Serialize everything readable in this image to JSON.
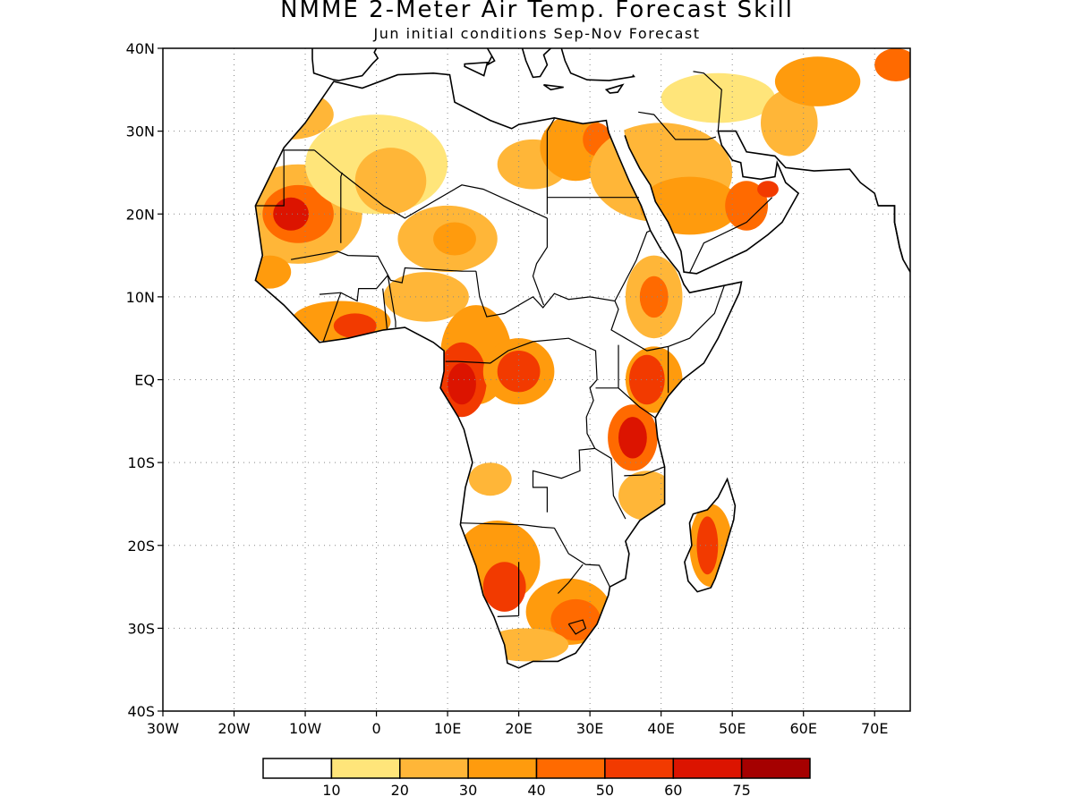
{
  "title": "NMME 2-Meter Air Temp. Forecast Skill",
  "subtitle": "Jun initial conditions  Sep-Nov Forecast",
  "map": {
    "lon_range": [
      -30,
      75
    ],
    "lat_range": [
      -40,
      40
    ],
    "grid": "dotted",
    "lat_ticks": [
      {
        "value": 40,
        "label": "40N"
      },
      {
        "value": 30,
        "label": "30N"
      },
      {
        "value": 20,
        "label": "20N"
      },
      {
        "value": 10,
        "label": "10N"
      },
      {
        "value": 0,
        "label": "EQ"
      },
      {
        "value": -10,
        "label": "10S"
      },
      {
        "value": -20,
        "label": "20S"
      },
      {
        "value": -30,
        "label": "30S"
      },
      {
        "value": -40,
        "label": "40S"
      }
    ],
    "lon_ticks": [
      {
        "value": -30,
        "label": "30W"
      },
      {
        "value": -20,
        "label": "20W"
      },
      {
        "value": -10,
        "label": "10W"
      },
      {
        "value": 0,
        "label": "0"
      },
      {
        "value": 10,
        "label": "10E"
      },
      {
        "value": 20,
        "label": "20E"
      },
      {
        "value": 30,
        "label": "30E"
      },
      {
        "value": 40,
        "label": "40E"
      },
      {
        "value": 50,
        "label": "50E"
      },
      {
        "value": 60,
        "label": "60E"
      },
      {
        "value": 70,
        "label": "70E"
      }
    ]
  },
  "colorbar": {
    "colors": [
      "#ffffff",
      "#ffe57a",
      "#ffb638",
      "#ff9b0d",
      "#ff6a00",
      "#f23a00",
      "#dc1400",
      "#a50000"
    ],
    "labels": [
      "10",
      "20",
      "30",
      "40",
      "50",
      "60",
      "75"
    ]
  },
  "skill_regions": [
    {
      "lon": -11,
      "lat": 20,
      "rx": 9,
      "ry": 6,
      "level": 2
    },
    {
      "lon": -11,
      "lat": 20,
      "rx": 5,
      "ry": 3.5,
      "level": 4
    },
    {
      "lon": -12,
      "lat": 20,
      "rx": 2.5,
      "ry": 2,
      "level": 6
    },
    {
      "lon": 0,
      "lat": 26,
      "rx": 10,
      "ry": 6,
      "level": 1
    },
    {
      "lon": 2,
      "lat": 24,
      "rx": 5,
      "ry": 4,
      "level": 2
    },
    {
      "lon": -12,
      "lat": 32,
      "rx": 6,
      "ry": 3,
      "level": 2
    },
    {
      "lon": -15,
      "lat": 13,
      "rx": 3,
      "ry": 2,
      "level": 3
    },
    {
      "lon": -5,
      "lat": 7,
      "rx": 7,
      "ry": 2.5,
      "level": 3
    },
    {
      "lon": -3,
      "lat": 6.5,
      "rx": 3,
      "ry": 1.5,
      "level": 5
    },
    {
      "lon": 10,
      "lat": 17,
      "rx": 7,
      "ry": 4,
      "level": 2
    },
    {
      "lon": 11,
      "lat": 17,
      "rx": 3,
      "ry": 2,
      "level": 3
    },
    {
      "lon": 7,
      "lat": 10,
      "rx": 6,
      "ry": 3,
      "level": 2
    },
    {
      "lon": 14,
      "lat": 3,
      "rx": 5,
      "ry": 6,
      "level": 3
    },
    {
      "lon": 12,
      "lat": 0,
      "rx": 3.5,
      "ry": 4.5,
      "level": 5
    },
    {
      "lon": 12,
      "lat": -0.5,
      "rx": 2,
      "ry": 2.5,
      "level": 6
    },
    {
      "lon": 20,
      "lat": 1,
      "rx": 5,
      "ry": 4,
      "level": 3
    },
    {
      "lon": 20,
      "lat": 1,
      "rx": 3,
      "ry": 2.5,
      "level": 5
    },
    {
      "lon": 22,
      "lat": 26,
      "rx": 5,
      "ry": 3,
      "level": 2
    },
    {
      "lon": 28,
      "lat": 28,
      "rx": 5,
      "ry": 4,
      "level": 3
    },
    {
      "lon": 31,
      "lat": 29,
      "rx": 2,
      "ry": 2,
      "level": 4
    },
    {
      "lon": 40,
      "lat": 25,
      "rx": 10,
      "ry": 6,
      "level": 2
    },
    {
      "lon": 44,
      "lat": 21,
      "rx": 7,
      "ry": 3.5,
      "level": 3
    },
    {
      "lon": 52,
      "lat": 21,
      "rx": 3,
      "ry": 3,
      "level": 4
    },
    {
      "lon": 55,
      "lat": 23,
      "rx": 1.5,
      "ry": 1,
      "level": 5
    },
    {
      "lon": 48,
      "lat": 34,
      "rx": 8,
      "ry": 3,
      "level": 1
    },
    {
      "lon": 58,
      "lat": 31,
      "rx": 4,
      "ry": 4,
      "level": 2
    },
    {
      "lon": 62,
      "lat": 36,
      "rx": 6,
      "ry": 3,
      "level": 3
    },
    {
      "lon": 73,
      "lat": 38,
      "rx": 3,
      "ry": 2,
      "level": 4
    },
    {
      "lon": 39,
      "lat": 10,
      "rx": 4,
      "ry": 5,
      "level": 2
    },
    {
      "lon": 39,
      "lat": 10,
      "rx": 2,
      "ry": 2.5,
      "level": 4
    },
    {
      "lon": 39,
      "lat": 0,
      "rx": 4,
      "ry": 4,
      "level": 3
    },
    {
      "lon": 38,
      "lat": 0,
      "rx": 2.5,
      "ry": 3,
      "level": 5
    },
    {
      "lon": 36,
      "lat": -7,
      "rx": 3.5,
      "ry": 4,
      "level": 4
    },
    {
      "lon": 36,
      "lat": -7,
      "rx": 2,
      "ry": 2.5,
      "level": 6
    },
    {
      "lon": 38,
      "lat": -14,
      "rx": 4,
      "ry": 3,
      "level": 2
    },
    {
      "lon": 17,
      "lat": -22,
      "rx": 6,
      "ry": 5,
      "level": 3
    },
    {
      "lon": 18,
      "lat": -25,
      "rx": 3,
      "ry": 3,
      "level": 5
    },
    {
      "lon": 27,
      "lat": -28,
      "rx": 6,
      "ry": 4,
      "level": 3
    },
    {
      "lon": 28,
      "lat": -29,
      "rx": 3.5,
      "ry": 2.5,
      "level": 4
    },
    {
      "lon": 21,
      "lat": -32,
      "rx": 6,
      "ry": 2,
      "level": 2
    },
    {
      "lon": 47,
      "lat": -20,
      "rx": 3,
      "ry": 5,
      "level": 3
    },
    {
      "lon": 46.5,
      "lat": -20,
      "rx": 1.5,
      "ry": 3.5,
      "level": 5
    },
    {
      "lon": 16,
      "lat": -12,
      "rx": 3,
      "ry": 2,
      "level": 2
    }
  ]
}
